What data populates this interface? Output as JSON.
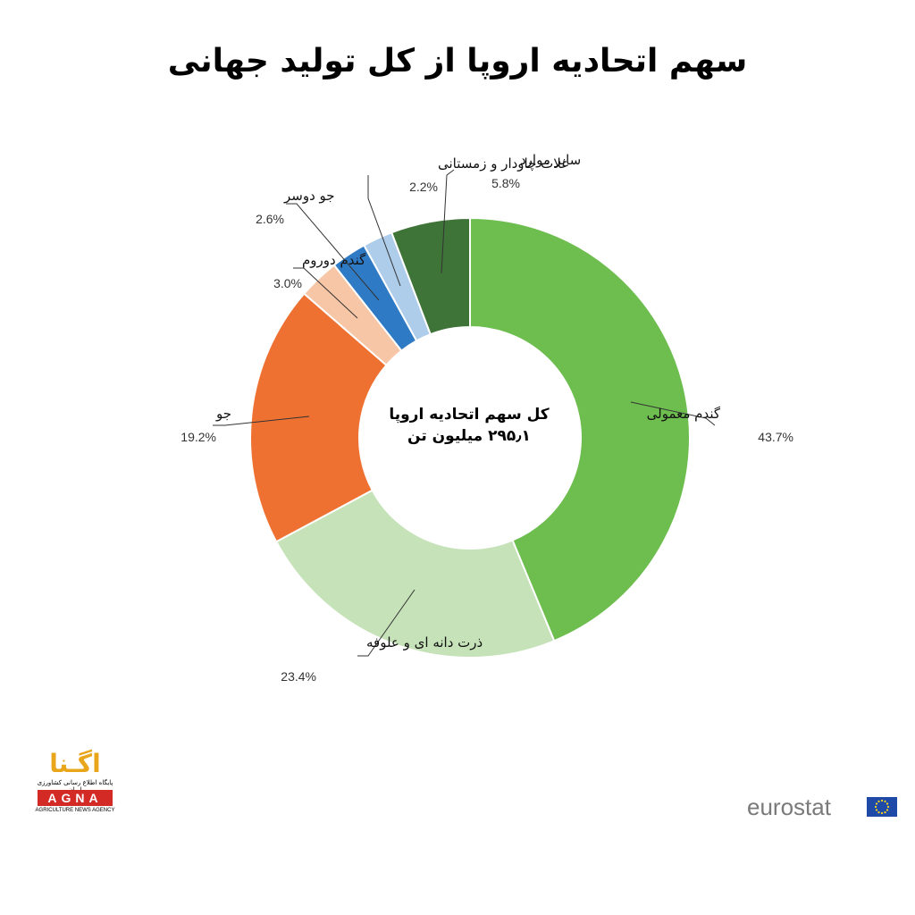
{
  "title": "سهم اتحادیه اروپا از کل تولید جهانی",
  "center": {
    "line1": "کل سهم اتحادیه اروپا",
    "line2": "۲۹۵٫۱ میلیون تن"
  },
  "chart_data": {
    "type": "pie",
    "donut": true,
    "title": "سهم اتحادیه اروپا از کل تولید جهانی",
    "slices": [
      {
        "label": "گندم معمولی",
        "value": 43.7,
        "value_label": "43.7%",
        "color": "#6dbd4f"
      },
      {
        "label": "ذرت دانه ای و علوفه",
        "value": 23.4,
        "value_label": "23.4%",
        "color": "#c6e2b8"
      },
      {
        "label": "جو",
        "value": 19.2,
        "value_label": "19.2%",
        "color": "#ef7131"
      },
      {
        "label": "گندم دوروم",
        "value": 3.0,
        "value_label": "3.0%",
        "color": "#f7c6a6"
      },
      {
        "label": "جو دوسر",
        "value": 2.6,
        "value_label": "2.6%",
        "color": "#2f7ac4"
      },
      {
        "label": "غلات چاودار و زمستانی",
        "value": 2.2,
        "value_label": "2.2%",
        "color": "#aecdea"
      },
      {
        "label": "سایر موارد",
        "value": 5.8,
        "value_label": "5.8%",
        "color": "#3f7438"
      }
    ]
  },
  "logo": {
    "agna_persian": "اگـنا",
    "agna_subtitle": "پایگاه اطلاع رسانی کشاورزی ایران",
    "agna_latin": "AGNA",
    "agna_tagline": "AGRICULTURE NEWS AGENCY",
    "eurostat": "eurostat"
  }
}
